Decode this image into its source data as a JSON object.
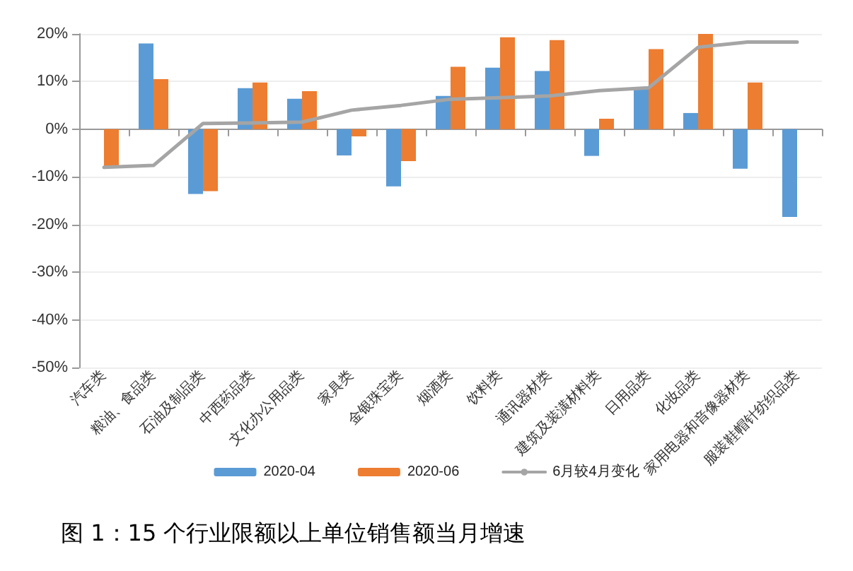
{
  "chart_data": {
    "type": "bar",
    "title": "图 1：15 个行业限额以上单位销售额当月增速",
    "categories": [
      "汽车类",
      "粮油、食品类",
      "石油及制品类",
      "中西药品类",
      "文化办公用品类",
      "家具类",
      "金银珠宝类",
      "烟酒类",
      "饮料类",
      "通讯器材类",
      "建筑及装潢材料类",
      "日用品类",
      "化妆品类",
      "家用电器和音像器材类",
      "服装鞋帽针纺织品类"
    ],
    "series": [
      {
        "name": "2020-04",
        "color": "#5b9bd5",
        "values": [
          null,
          18,
          -13.6,
          8.6,
          6.4,
          -5.5,
          -12,
          7,
          12.9,
          12.2,
          -5.6,
          8.5,
          3.4,
          -8.3,
          -18.4
        ]
      },
      {
        "name": "2020-06",
        "color": "#ed7d31",
        "values": [
          -8,
          10.5,
          -13,
          9.8,
          8,
          -1.5,
          -6.7,
          13.1,
          19.3,
          18.7,
          2.2,
          16.8,
          20,
          9.8,
          null
        ]
      },
      {
        "name": "6月较4月变化",
        "type": "line",
        "color": "#a5a5a5",
        "values": [
          -8,
          -7.6,
          1.2,
          1.3,
          1.5,
          4,
          5,
          6.3,
          6.6,
          7,
          8.1,
          8.7,
          17.2,
          18.3,
          18.3
        ]
      }
    ],
    "ylim": [
      -50,
      20
    ],
    "yticks": [
      {
        "value": -50,
        "label": "-50%"
      },
      {
        "value": -40,
        "label": "-40%"
      },
      {
        "value": -30,
        "label": "-30%"
      },
      {
        "value": -20,
        "label": "-20%"
      },
      {
        "value": -10,
        "label": "-10%"
      },
      {
        "value": 0,
        "label": "0%"
      },
      {
        "value": 10,
        "label": "10%"
      },
      {
        "value": 20,
        "label": "20%"
      }
    ],
    "grid": "y",
    "legend": "bottom",
    "marker": "none",
    "line_style": "solid"
  }
}
